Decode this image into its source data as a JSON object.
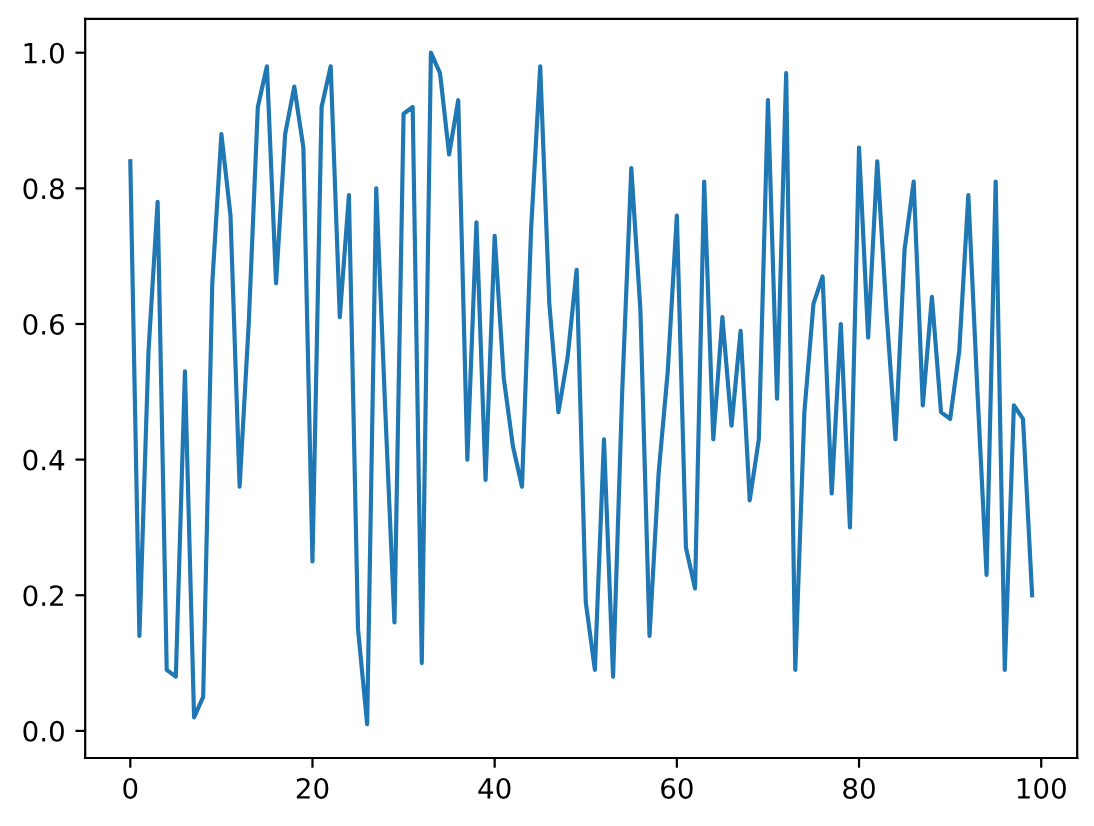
{
  "chart_data": {
    "type": "line",
    "x": [
      0,
      1,
      2,
      3,
      4,
      5,
      6,
      7,
      8,
      9,
      10,
      11,
      12,
      13,
      14,
      15,
      16,
      17,
      18,
      19,
      20,
      21,
      22,
      23,
      24,
      25,
      26,
      27,
      28,
      29,
      30,
      31,
      32,
      33,
      34,
      35,
      36,
      37,
      38,
      39,
      40,
      41,
      42,
      43,
      44,
      45,
      46,
      47,
      48,
      49,
      50,
      51,
      52,
      53,
      54,
      55,
      56,
      57,
      58,
      59,
      60,
      61,
      62,
      63,
      64,
      65,
      66,
      67,
      68,
      69,
      70,
      71,
      72,
      73,
      74,
      75,
      76,
      77,
      78,
      79,
      80,
      81,
      82,
      83,
      84,
      85,
      86,
      87,
      88,
      89,
      90,
      91,
      92,
      93,
      94,
      95,
      96,
      97,
      98,
      99
    ],
    "values": [
      0.84,
      0.14,
      0.56,
      0.78,
      0.09,
      0.08,
      0.53,
      0.02,
      0.05,
      0.66,
      0.88,
      0.76,
      0.36,
      0.6,
      0.92,
      0.98,
      0.66,
      0.88,
      0.95,
      0.86,
      0.25,
      0.92,
      0.98,
      0.61,
      0.79,
      0.15,
      0.01,
      0.8,
      0.47,
      0.16,
      0.91,
      0.92,
      0.1,
      1.0,
      0.97,
      0.85,
      0.93,
      0.4,
      0.75,
      0.37,
      0.73,
      0.52,
      0.42,
      0.36,
      0.74,
      0.98,
      0.63,
      0.47,
      0.55,
      0.68,
      0.19,
      0.09,
      0.43,
      0.08,
      0.5,
      0.83,
      0.62,
      0.14,
      0.38,
      0.53,
      0.76,
      0.27,
      0.21,
      0.81,
      0.43,
      0.61,
      0.45,
      0.59,
      0.34,
      0.43,
      0.93,
      0.49,
      0.97,
      0.09,
      0.47,
      0.63,
      0.67,
      0.35,
      0.6,
      0.3,
      0.86,
      0.58,
      0.84,
      0.62,
      0.43,
      0.71,
      0.81,
      0.48,
      0.64,
      0.47,
      0.46,
      0.56,
      0.79,
      0.5,
      0.23,
      0.81,
      0.09,
      0.48,
      0.46,
      0.2
    ],
    "color": "#1f77b4",
    "xlim": [
      -4.95,
      103.95
    ],
    "xticks": [
      0,
      20,
      40,
      60,
      80,
      100
    ],
    "ylim": [
      -0.04,
      1.05
    ],
    "yticks": [
      {
        "value": 0,
        "label": "0.0"
      },
      0.2,
      0.4,
      0.6,
      0.8,
      {
        "value": 1,
        "label": "1.0"
      }
    ],
    "grid": false
  }
}
